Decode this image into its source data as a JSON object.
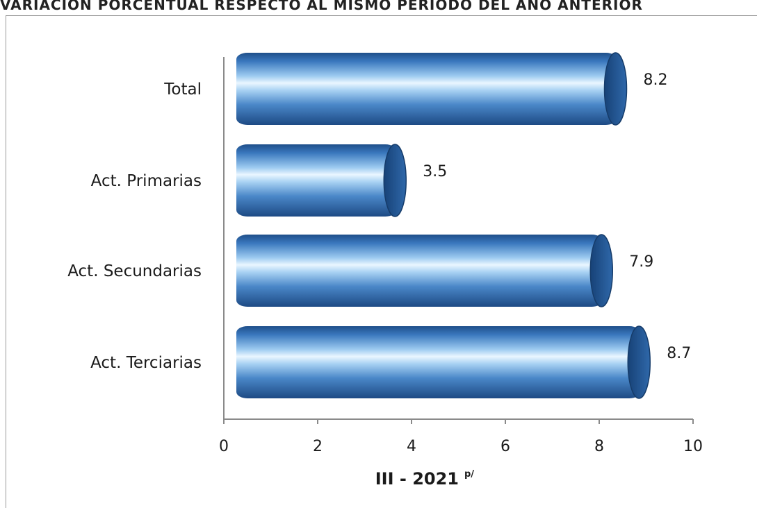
{
  "header": {
    "title": "VARIACIÓN PORCENTUAL RESPECTO AL MISMO PERIODO DEL AÑO ANTERIOR"
  },
  "chart_data": {
    "type": "bar",
    "orientation": "horizontal",
    "title": "VARIACIÓN PORCENTUAL RESPECTO AL MISMO PERIODO DEL AÑO ANTERIOR",
    "categories": [
      "Total",
      "Act. Primarias",
      "Act. Secundarias",
      "Act. Terciarias"
    ],
    "values": [
      8.2,
      3.5,
      7.9,
      8.7
    ],
    "value_labels": [
      "8.2",
      "3.5",
      "7.9",
      "8.7"
    ],
    "xlabel": "III - 2021",
    "xlabel_superscript": "p/",
    "xlim": [
      0,
      10
    ],
    "xticks": [
      0,
      2,
      4,
      6,
      8,
      10
    ],
    "grid": false,
    "bar_color": "#3a75b8",
    "bar_highlight": "#e6f3ff",
    "bar_shadow": "#1d4f8a"
  }
}
